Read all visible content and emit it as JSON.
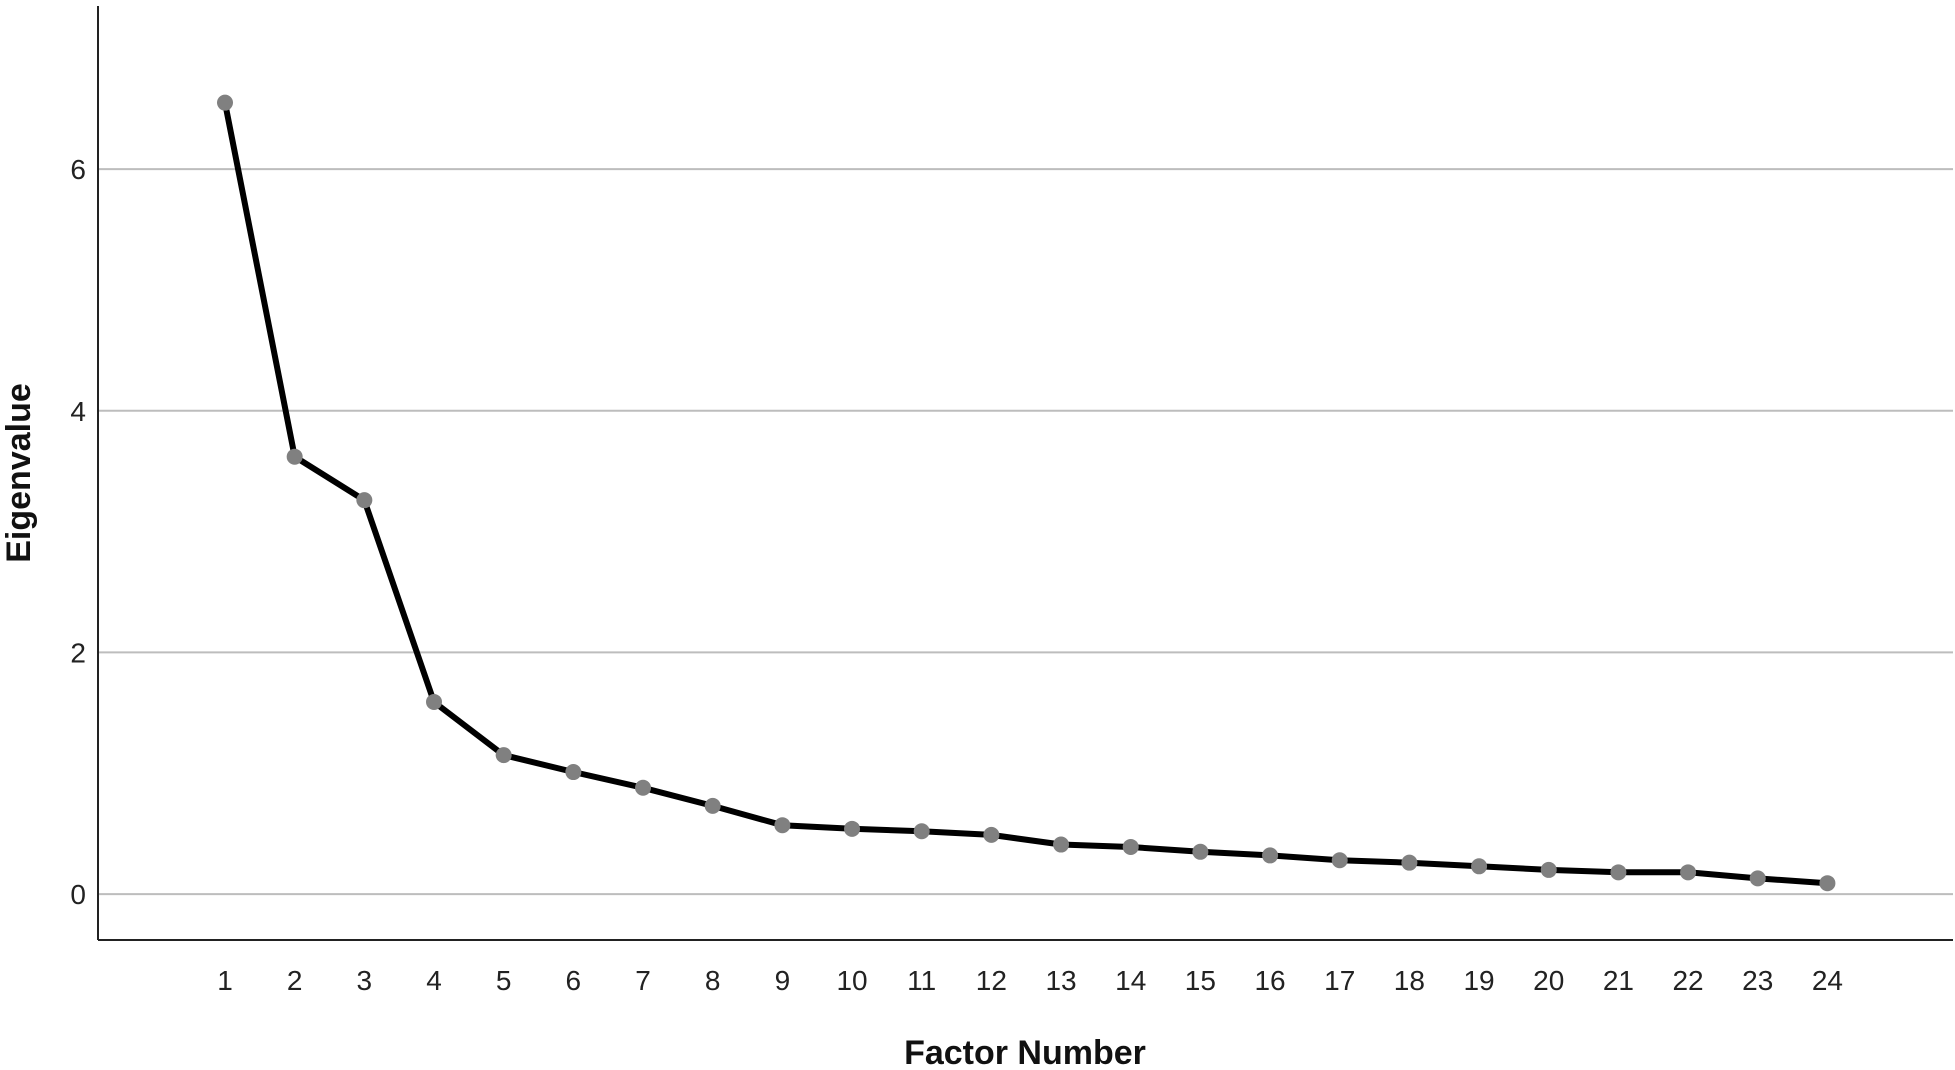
{
  "chart_data": {
    "type": "line",
    "title": "",
    "xlabel": "Factor Number",
    "ylabel": "Eigenvalue",
    "x": [
      1,
      2,
      3,
      4,
      5,
      6,
      7,
      8,
      9,
      10,
      11,
      12,
      13,
      14,
      15,
      16,
      17,
      18,
      19,
      20,
      21,
      22,
      23,
      24
    ],
    "series": [
      {
        "values": [
          6.55,
          3.62,
          3.26,
          1.59,
          1.15,
          1.01,
          0.88,
          0.73,
          0.57,
          0.54,
          0.52,
          0.49,
          0.41,
          0.39,
          0.35,
          0.32,
          0.28,
          0.26,
          0.23,
          0.2,
          0.18,
          0.18,
          0.13,
          0.09
        ]
      }
    ],
    "yticks": [
      "0",
      "2",
      "4",
      "6"
    ],
    "ylim": [
      -0.38,
      7.35
    ],
    "grid": "horizontal",
    "legend": "none",
    "colors": {
      "line": "#000000",
      "marker": "#808080",
      "grid": "#bdbdbd",
      "axis": "#222222"
    }
  }
}
